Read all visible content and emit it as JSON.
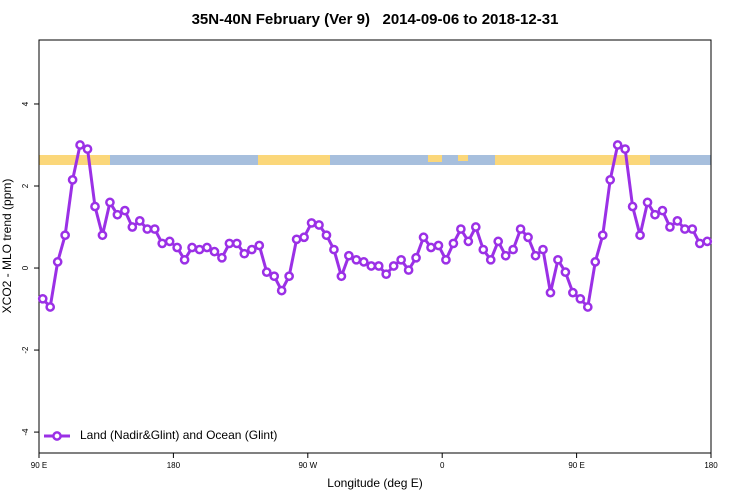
{
  "chart_data": {
    "type": "line",
    "title": "35N-40N February (Ver 9)   2014-09-06 to 2018-12-31",
    "x_label": "Longitude (deg E)",
    "y_label": "XCO2 - MLO trend (ppm)",
    "x": [
      92.5,
      97.5,
      102.5,
      107.5,
      112.5,
      117.5,
      122.5,
      127.5,
      132.5,
      137.5,
      142.5,
      147.5,
      152.5,
      157.5,
      162.5,
      167.5,
      172.5,
      177.5,
      182.5,
      187.5,
      192.5,
      197.5,
      202.5,
      207.5,
      212.5,
      217.5,
      222.5,
      227.5,
      232.5,
      237.5,
      242.5,
      247.5,
      252.5,
      257.5,
      262.5,
      267.5,
      272.5,
      277.5,
      282.5,
      287.5,
      292.5,
      297.5,
      302.5,
      307.5,
      312.5,
      317.5,
      322.5,
      327.5,
      332.5,
      337.5,
      342.5,
      347.5,
      352.5,
      357.5,
      362.5,
      367.5,
      372.5,
      377.5,
      382.5,
      387.5,
      392.5,
      397.5,
      402.5,
      407.5,
      412.5,
      417.5,
      422.5,
      427.5,
      432.5,
      437.5,
      442.5,
      447.5,
      452.5,
      457.5,
      462.5,
      467.5,
      472.5,
      477.5,
      482.5,
      487.5,
      492.5,
      497.5,
      502.5,
      507.5,
      512.5,
      517.5,
      522.5,
      527.5,
      532.5,
      537.5
    ],
    "series": [
      {
        "name": "Land (Nadir&Glint) and Ocean (Glint)",
        "color": "#9b30e6",
        "values": [
          -0.75,
          -0.95,
          0.15,
          0.8,
          2.15,
          3.0,
          2.9,
          1.5,
          0.8,
          1.6,
          1.3,
          1.4,
          1.0,
          1.15,
          0.95,
          0.95,
          0.6,
          0.65,
          0.5,
          0.2,
          0.5,
          0.45,
          0.5,
          0.4,
          0.25,
          0.6,
          0.6,
          0.35,
          0.45,
          0.55,
          -0.1,
          -0.2,
          -0.55,
          -0.2,
          0.7,
          0.75,
          1.1,
          1.05,
          0.8,
          0.45,
          -0.2,
          0.3,
          0.2,
          0.15,
          0.05,
          0.05,
          -0.15,
          0.05,
          0.2,
          -0.05,
          0.25,
          0.75,
          0.5,
          0.55,
          0.2,
          0.6,
          0.95,
          0.65,
          1.0,
          0.45,
          0.2,
          0.65,
          0.3,
          0.45,
          0.95,
          0.75,
          0.3,
          0.45,
          -0.6,
          0.2,
          -0.1,
          -0.6,
          -0.75,
          -0.95,
          0.15,
          0.8,
          2.15,
          3.0,
          2.9,
          1.5,
          0.8,
          1.6,
          1.3,
          1.4,
          1.0,
          1.15,
          0.95,
          0.95,
          0.6,
          0.65
        ]
      }
    ],
    "xlim": [
      90,
      540
    ],
    "xticks": [
      {
        "value": 90,
        "label": "90 E"
      },
      {
        "value": 180,
        "label": "180"
      },
      {
        "value": 270,
        "label": "90 W"
      },
      {
        "value": 360,
        "label": "0"
      },
      {
        "value": 450,
        "label": "90 E"
      },
      {
        "value": 540,
        "label": "180"
      }
    ],
    "ylim": [
      -4.51,
      5.56
    ],
    "yticks": [
      -4,
      -2,
      0,
      2,
      4
    ],
    "legend": "bottom-left"
  }
}
